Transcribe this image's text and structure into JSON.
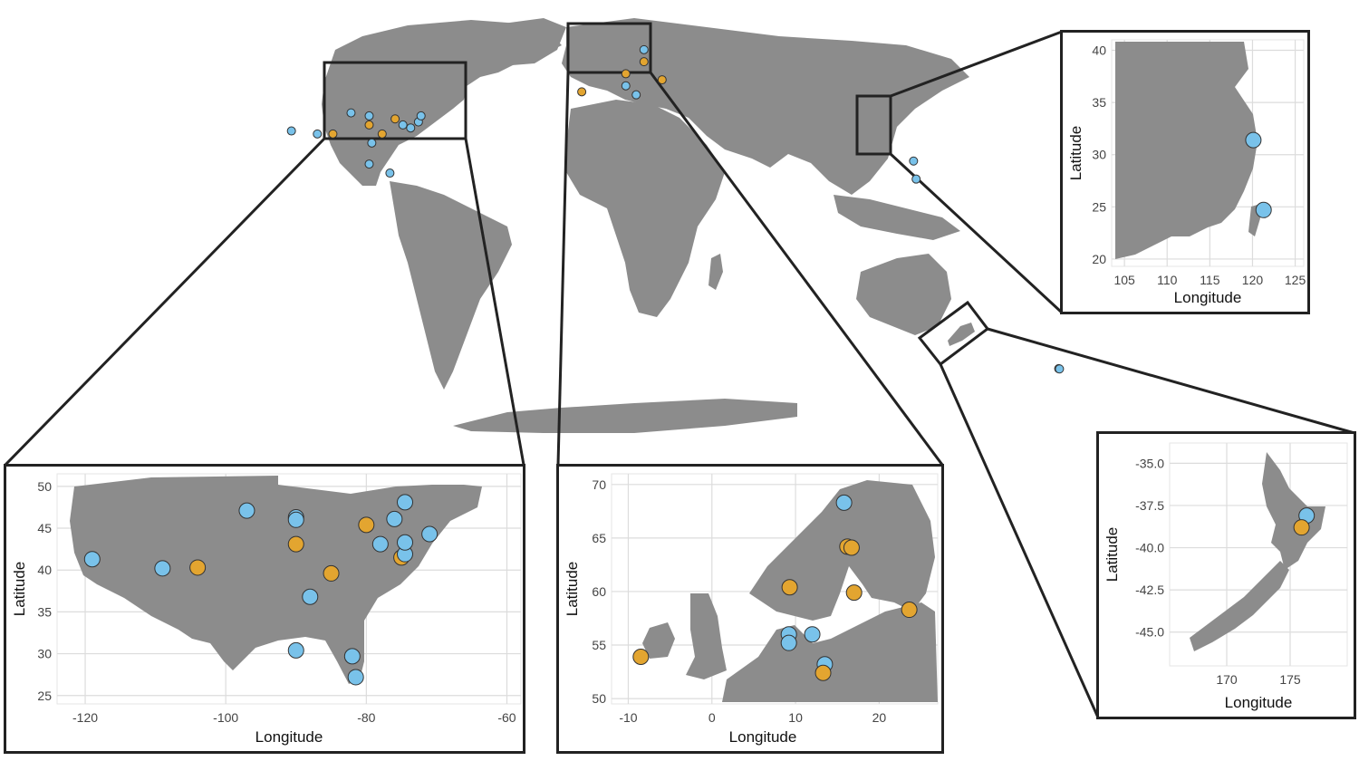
{
  "colors": {
    "blue": "#79c2ea",
    "orange": "#e3a530",
    "land": "#8c8c8c",
    "outline": "#222222"
  },
  "axis_labels": {
    "x": "Longitude",
    "y": "Latitude"
  },
  "insets": {
    "usa": {
      "x_ticks": [
        "-120",
        "-100",
        "-80",
        "-60"
      ],
      "y_ticks": [
        "25",
        "30",
        "35",
        "40",
        "45",
        "50"
      ],
      "points": [
        {
          "lon": -119,
          "lat": 41.3,
          "group": "blue"
        },
        {
          "lon": -109,
          "lat": 40.2,
          "group": "blue"
        },
        {
          "lon": -104,
          "lat": 40.3,
          "group": "orange"
        },
        {
          "lon": -97,
          "lat": 47.1,
          "group": "blue"
        },
        {
          "lon": -90,
          "lat": 46.3,
          "group": "blue"
        },
        {
          "lon": -90,
          "lat": 46.0,
          "group": "blue"
        },
        {
          "lon": -90,
          "lat": 43.1,
          "group": "orange"
        },
        {
          "lon": -90,
          "lat": 30.4,
          "group": "blue"
        },
        {
          "lon": -85,
          "lat": 39.6,
          "group": "orange"
        },
        {
          "lon": -88,
          "lat": 36.8,
          "group": "blue"
        },
        {
          "lon": -80,
          "lat": 45.4,
          "group": "orange"
        },
        {
          "lon": -76,
          "lat": 46.1,
          "group": "blue"
        },
        {
          "lon": -78,
          "lat": 43.1,
          "group": "blue"
        },
        {
          "lon": -75,
          "lat": 41.5,
          "group": "orange"
        },
        {
          "lon": -74.5,
          "lat": 41.9,
          "group": "blue"
        },
        {
          "lon": -74.5,
          "lat": 43.3,
          "group": "blue"
        },
        {
          "lon": -74.5,
          "lat": 48.1,
          "group": "blue"
        },
        {
          "lon": -71,
          "lat": 44.3,
          "group": "blue"
        },
        {
          "lon": -82,
          "lat": 29.7,
          "group": "blue"
        },
        {
          "lon": -81.5,
          "lat": 27.2,
          "group": "blue"
        }
      ]
    },
    "europe": {
      "x_ticks": [
        "-10",
        "0",
        "10",
        "20"
      ],
      "y_ticks": [
        "50",
        "55",
        "60",
        "65",
        "70"
      ],
      "points": [
        {
          "lon": -8.5,
          "lat": 53.9,
          "group": "orange"
        },
        {
          "lon": 9.3,
          "lat": 60.4,
          "group": "orange"
        },
        {
          "lon": 9.2,
          "lat": 56.0,
          "group": "blue"
        },
        {
          "lon": 9.2,
          "lat": 55.2,
          "group": "blue"
        },
        {
          "lon": 12.0,
          "lat": 56.0,
          "group": "blue"
        },
        {
          "lon": 13.5,
          "lat": 53.2,
          "group": "blue"
        },
        {
          "lon": 13.3,
          "lat": 52.4,
          "group": "orange"
        },
        {
          "lon": 15.8,
          "lat": 68.3,
          "group": "blue"
        },
        {
          "lon": 16.2,
          "lat": 64.2,
          "group": "orange"
        },
        {
          "lon": 16.7,
          "lat": 64.1,
          "group": "orange"
        },
        {
          "lon": 17.0,
          "lat": 59.9,
          "group": "orange"
        },
        {
          "lon": 23.6,
          "lat": 58.3,
          "group": "orange"
        }
      ]
    },
    "china": {
      "x_ticks": [
        "105",
        "110",
        "115",
        "120",
        "125"
      ],
      "y_ticks": [
        "20",
        "25",
        "30",
        "35",
        "40"
      ],
      "points": [
        {
          "lon": 120.1,
          "lat": 31.4,
          "group": "blue"
        },
        {
          "lon": 121.3,
          "lat": 24.7,
          "group": "blue"
        }
      ]
    },
    "nz": {
      "x_ticks": [
        "170",
        "175"
      ],
      "y_ticks": [
        "-35.0",
        "-37.5",
        "-40.0",
        "-42.5",
        "-45.0"
      ],
      "points": [
        {
          "lon": 176.3,
          "lat": -38.1,
          "group": "blue"
        },
        {
          "lon": 175.9,
          "lat": -38.8,
          "group": "orange"
        }
      ]
    }
  },
  "world": {
    "points": [
      {
        "lon": -120,
        "lat": 41,
        "group": "blue"
      },
      {
        "lon": -110,
        "lat": 40,
        "group": "blue"
      },
      {
        "lon": -104,
        "lat": 40,
        "group": "orange"
      },
      {
        "lon": -97,
        "lat": 47,
        "group": "blue"
      },
      {
        "lon": -90,
        "lat": 46,
        "group": "blue"
      },
      {
        "lon": -90,
        "lat": 43,
        "group": "orange"
      },
      {
        "lon": -85,
        "lat": 40,
        "group": "orange"
      },
      {
        "lon": -89,
        "lat": 37,
        "group": "blue"
      },
      {
        "lon": -80,
        "lat": 45,
        "group": "orange"
      },
      {
        "lon": -77,
        "lat": 43,
        "group": "blue"
      },
      {
        "lon": -74,
        "lat": 42,
        "group": "blue"
      },
      {
        "lon": -71,
        "lat": 44,
        "group": "blue"
      },
      {
        "lon": -70,
        "lat": 46,
        "group": "blue"
      },
      {
        "lon": -90,
        "lat": 30,
        "group": "blue"
      },
      {
        "lon": -82,
        "lat": 27,
        "group": "blue"
      },
      {
        "lon": -8,
        "lat": 54,
        "group": "orange"
      },
      {
        "lon": 9,
        "lat": 60,
        "group": "orange"
      },
      {
        "lon": 9,
        "lat": 56,
        "group": "blue"
      },
      {
        "lon": 13,
        "lat": 53,
        "group": "blue"
      },
      {
        "lon": 16,
        "lat": 68,
        "group": "blue"
      },
      {
        "lon": 16,
        "lat": 64,
        "group": "orange"
      },
      {
        "lon": 23,
        "lat": 58,
        "group": "orange"
      },
      {
        "lon": 120,
        "lat": 31,
        "group": "blue"
      },
      {
        "lon": 121,
        "lat": 25,
        "group": "blue"
      },
      {
        "lon": 176,
        "lat": -38,
        "group": "orange"
      },
      {
        "lon": 176.3,
        "lat": -38.1,
        "group": "blue"
      }
    ]
  }
}
